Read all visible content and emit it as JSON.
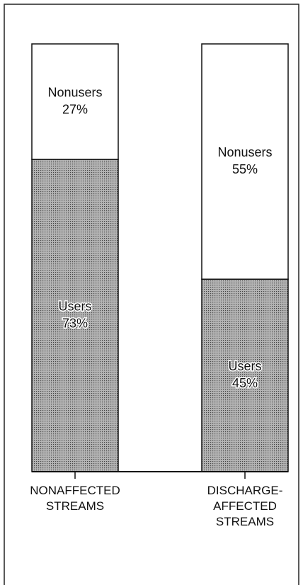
{
  "chart_data": {
    "type": "stacked_bar",
    "categories": [
      "NONAFFECTED\nSTREAMS",
      "DISCHARGE-\nAFFECTED\nSTREAMS"
    ],
    "series": [
      {
        "name": "Users",
        "color": "#b4b4b4",
        "values": [
          73,
          45
        ],
        "value_labels": [
          "73%",
          "45%"
        ]
      },
      {
        "name": "Nonusers",
        "color": "#ffffff",
        "values": [
          27,
          55
        ],
        "value_labels": [
          "27%",
          "55%"
        ]
      }
    ]
  }
}
